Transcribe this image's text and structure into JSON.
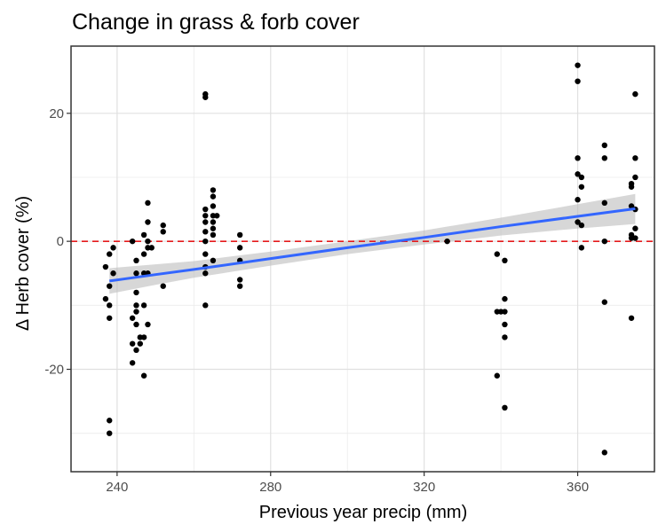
{
  "chart_data": {
    "type": "scatter",
    "title": "Change in grass & forb cover",
    "xlabel": "Previous year precip (mm)",
    "ylabel": "Δ Herb cover (%)",
    "xlim": [
      228,
      380
    ],
    "ylim": [
      -36,
      30.5
    ],
    "x_major_ticks": [
      240,
      280,
      320,
      360
    ],
    "x_tick_labels": [
      "240",
      "280",
      "320",
      "360"
    ],
    "x_minor_ticks": [
      260,
      300,
      340
    ],
    "y_major_ticks": [
      -20,
      0,
      20
    ],
    "y_tick_labels": [
      "-20",
      "0",
      "20"
    ],
    "y_minor_ticks": [
      -30,
      -10,
      10
    ],
    "grid": true,
    "reference_line": {
      "y": 0,
      "style": "dashed",
      "color": "#e41a1c"
    },
    "fit": {
      "color": "#3366ff",
      "ribbon_color": "#bdbdbd",
      "points": [
        [
          238,
          -6.2
        ],
        [
          250,
          -5.2
        ],
        [
          260,
          -4.4
        ],
        [
          280,
          -2.7
        ],
        [
          300,
          -1.0
        ],
        [
          320,
          0.6
        ],
        [
          340,
          2.3
        ],
        [
          360,
          3.9
        ],
        [
          375,
          5.1
        ]
      ],
      "lower": [
        [
          238,
          -8.2
        ],
        [
          250,
          -6.8
        ],
        [
          260,
          -5.7
        ],
        [
          280,
          -3.8
        ],
        [
          300,
          -2.0
        ],
        [
          320,
          -0.5
        ],
        [
          340,
          0.9
        ],
        [
          360,
          2.0
        ],
        [
          375,
          2.7
        ]
      ],
      "upper": [
        [
          238,
          -4.2
        ],
        [
          250,
          -3.6
        ],
        [
          260,
          -3.1
        ],
        [
          280,
          -1.6
        ],
        [
          300,
          0.0
        ],
        [
          320,
          1.7
        ],
        [
          340,
          3.7
        ],
        [
          360,
          5.8
        ],
        [
          375,
          7.4
        ]
      ]
    },
    "series": [
      {
        "color": "#000000",
        "points": [
          [
            238,
            -28
          ],
          [
            238,
            -30
          ],
          [
            237,
            -4
          ],
          [
            238,
            -7
          ],
          [
            238,
            -10
          ],
          [
            238,
            -12
          ],
          [
            238,
            -2
          ],
          [
            239,
            -5
          ],
          [
            239,
            -1
          ],
          [
            237,
            -9
          ],
          [
            244,
            -19
          ],
          [
            244,
            -16
          ],
          [
            245,
            -17
          ],
          [
            245,
            -13
          ],
          [
            245,
            -11
          ],
          [
            244,
            -12
          ],
          [
            245,
            -10
          ],
          [
            245,
            -8
          ],
          [
            245,
            -5
          ],
          [
            245,
            -3
          ],
          [
            244,
            0
          ],
          [
            246,
            -15
          ],
          [
            246,
            -16
          ],
          [
            247,
            -15
          ],
          [
            247,
            -21
          ],
          [
            247,
            -10
          ],
          [
            247,
            -5
          ],
          [
            247,
            -2
          ],
          [
            247,
            1
          ],
          [
            248,
            -13
          ],
          [
            248,
            -5
          ],
          [
            248,
            -1
          ],
          [
            248,
            0
          ],
          [
            248,
            3
          ],
          [
            248,
            6
          ],
          [
            249,
            -1
          ],
          [
            252,
            -7
          ],
          [
            252,
            1.5
          ],
          [
            252,
            2.5
          ],
          [
            263,
            -10
          ],
          [
            263,
            23
          ],
          [
            263,
            22.5
          ],
          [
            263,
            5
          ],
          [
            263,
            4
          ],
          [
            263,
            3
          ],
          [
            263,
            1.5
          ],
          [
            263,
            0
          ],
          [
            263,
            -2
          ],
          [
            263,
            -4
          ],
          [
            263,
            -5
          ],
          [
            265,
            8
          ],
          [
            265,
            7
          ],
          [
            265,
            5.5
          ],
          [
            265,
            4
          ],
          [
            265,
            3
          ],
          [
            265,
            1
          ],
          [
            265,
            -3
          ],
          [
            266,
            4
          ],
          [
            265,
            2
          ],
          [
            272,
            1
          ],
          [
            272,
            -1
          ],
          [
            272,
            -3
          ],
          [
            272,
            -6
          ],
          [
            272,
            -7
          ],
          [
            326,
            0
          ],
          [
            339,
            -2
          ],
          [
            339,
            -11
          ],
          [
            339,
            -21
          ],
          [
            340,
            -11
          ],
          [
            341,
            -3
          ],
          [
            341,
            -9
          ],
          [
            341,
            -11
          ],
          [
            341,
            -13
          ],
          [
            341,
            -15
          ],
          [
            341,
            -26
          ],
          [
            360,
            27.5
          ],
          [
            360,
            25
          ],
          [
            360,
            13
          ],
          [
            360,
            10.5
          ],
          [
            360,
            6.5
          ],
          [
            360,
            3
          ],
          [
            361,
            10
          ],
          [
            361,
            8.5
          ],
          [
            361,
            2.5
          ],
          [
            361,
            -1
          ],
          [
            367,
            15
          ],
          [
            367,
            13
          ],
          [
            367,
            6
          ],
          [
            367,
            0
          ],
          [
            367,
            -9.5
          ],
          [
            367,
            -33
          ],
          [
            374,
            9
          ],
          [
            374,
            8.5
          ],
          [
            374,
            5.5
          ],
          [
            374,
            1
          ],
          [
            374,
            0.5
          ],
          [
            374,
            -12
          ],
          [
            375,
            23
          ],
          [
            375,
            13
          ],
          [
            375,
            10
          ],
          [
            375,
            5
          ],
          [
            375,
            2
          ],
          [
            375,
            0.5
          ]
        ]
      }
    ]
  }
}
